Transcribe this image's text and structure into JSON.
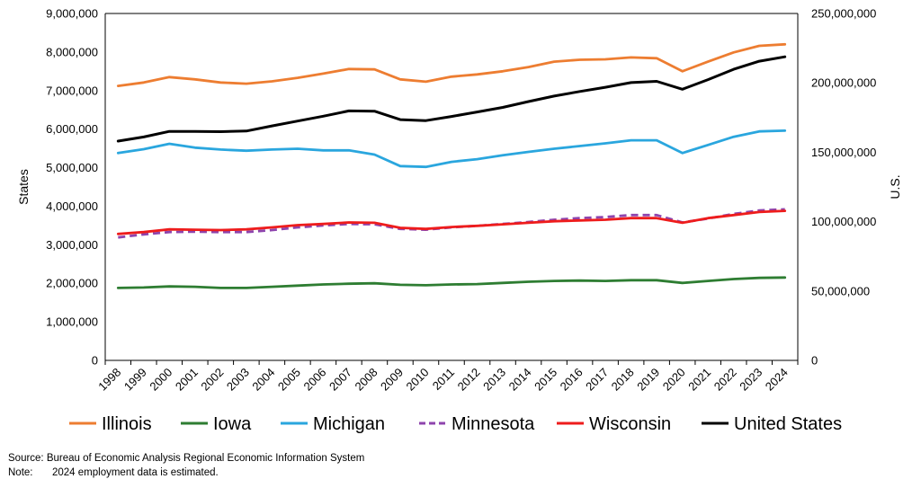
{
  "chart_data": {
    "type": "line",
    "xlabel": "",
    "ylabel": "States",
    "ylabel_right": "U.S.",
    "ylim": [
      0,
      9000000
    ],
    "ylim_right": [
      0,
      250000000
    ],
    "yticks": [
      "0",
      "1,000,000",
      "2,000,000",
      "3,000,000",
      "4,000,000",
      "5,000,000",
      "6,000,000",
      "7,000,000",
      "8,000,000",
      "9,000,000"
    ],
    "yticks_right": [
      "0",
      "50,000,000",
      "100,000,000",
      "150,000,000",
      "200,000,000",
      "250,000,000"
    ],
    "grid": false,
    "legend_position": "bottom",
    "categories": [
      "1998",
      "1999",
      "2000",
      "2001",
      "2002",
      "2003",
      "2004",
      "2005",
      "2006",
      "2007",
      "2008",
      "2009",
      "2010",
      "2011",
      "2012",
      "2013",
      "2014",
      "2015",
      "2016",
      "2017",
      "2018",
      "2019",
      "2020",
      "2021",
      "2022",
      "2023",
      "2024"
    ],
    "series": [
      {
        "name": "Illinois",
        "axis": "left",
        "color": "#ED7D31",
        "dash": false,
        "values": [
          7120000,
          7210000,
          7350000,
          7290000,
          7210000,
          7180000,
          7240000,
          7330000,
          7440000,
          7560000,
          7550000,
          7290000,
          7230000,
          7360000,
          7420000,
          7500000,
          7610000,
          7750000,
          7800000,
          7810000,
          7860000,
          7840000,
          7500000,
          7750000,
          7990000,
          8160000,
          8200000
        ]
      },
      {
        "name": "Iowa",
        "axis": "left",
        "color": "#2E7D32",
        "dash": false,
        "values": [
          1880000,
          1890000,
          1920000,
          1910000,
          1880000,
          1880000,
          1910000,
          1940000,
          1970000,
          1990000,
          2000000,
          1960000,
          1950000,
          1970000,
          1980000,
          2010000,
          2040000,
          2060000,
          2070000,
          2060000,
          2080000,
          2080000,
          2010000,
          2060000,
          2110000,
          2140000,
          2150000
        ]
      },
      {
        "name": "Michigan",
        "axis": "left",
        "color": "#2AA6DE",
        "dash": false,
        "values": [
          5380000,
          5480000,
          5620000,
          5520000,
          5470000,
          5440000,
          5470000,
          5490000,
          5450000,
          5450000,
          5340000,
          5040000,
          5020000,
          5150000,
          5220000,
          5320000,
          5410000,
          5490000,
          5560000,
          5630000,
          5710000,
          5710000,
          5380000,
          5590000,
          5800000,
          5940000,
          5960000
        ]
      },
      {
        "name": "Minnesota",
        "axis": "left",
        "color": "#8E44AD",
        "dash": true,
        "values": [
          3190000,
          3270000,
          3330000,
          3340000,
          3330000,
          3330000,
          3380000,
          3450000,
          3500000,
          3540000,
          3530000,
          3410000,
          3390000,
          3450000,
          3490000,
          3540000,
          3590000,
          3650000,
          3690000,
          3720000,
          3770000,
          3770000,
          3580000,
          3680000,
          3800000,
          3890000,
          3920000
        ]
      },
      {
        "name": "Wisconsin",
        "axis": "left",
        "color": "#EE1C1C",
        "dash": false,
        "values": [
          3280000,
          3330000,
          3400000,
          3390000,
          3380000,
          3400000,
          3450000,
          3510000,
          3540000,
          3580000,
          3570000,
          3440000,
          3410000,
          3460000,
          3490000,
          3530000,
          3570000,
          3610000,
          3630000,
          3650000,
          3690000,
          3690000,
          3570000,
          3690000,
          3770000,
          3850000,
          3880000
        ]
      },
      {
        "name": "United States",
        "axis": "right",
        "color": "#000000",
        "dash": false,
        "values": [
          158000000,
          161000000,
          165000000,
          165000000,
          164800000,
          165300000,
          169000000,
          172500000,
          176000000,
          179800000,
          179600000,
          173500000,
          172800000,
          175800000,
          179000000,
          182300000,
          186500000,
          190500000,
          193800000,
          196800000,
          200200000,
          201100000,
          195400000,
          202300000,
          209800000,
          215600000,
          218800000
        ]
      }
    ]
  },
  "footer": {
    "source": "Source: Bureau of Economic Analysis Regional Economic Information System",
    "note_label": "Note:",
    "note_text": "2024 employment data is estimated."
  }
}
